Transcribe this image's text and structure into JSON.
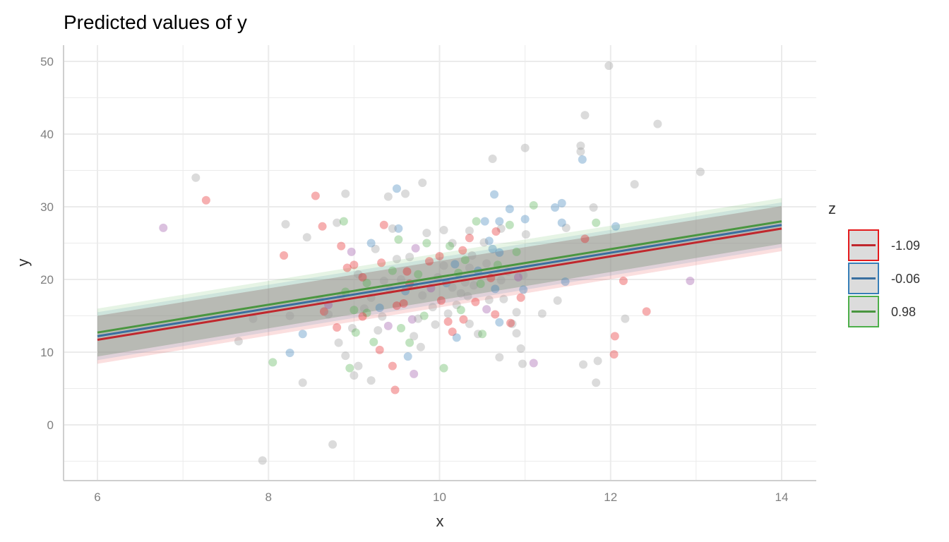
{
  "chart_data": {
    "type": "scatter",
    "title": "Predicted values of y",
    "xlabel": "x",
    "ylabel": "y",
    "xlim": [
      5.6,
      14.4
    ],
    "ylim": [
      -7.5,
      52
    ],
    "xticks": [
      6,
      8,
      10,
      12,
      14
    ],
    "yticks": [
      0,
      10,
      20,
      30,
      40,
      50
    ],
    "grid": true,
    "legend": {
      "title": "z",
      "placement": "right"
    },
    "series": [
      {
        "name": "-1.09",
        "color": "#c0272d",
        "fill": "#e41a1c",
        "line": [
          [
            6,
            11.7
          ],
          [
            14,
            27.0
          ]
        ],
        "ci_lower": [
          [
            6,
            8.4
          ],
          [
            14,
            23.9
          ]
        ],
        "ci_upper": [
          [
            6,
            15.0
          ],
          [
            14,
            30.1
          ]
        ]
      },
      {
        "name": "-0.06",
        "color": "#3a6fa0",
        "fill": "#377eb8",
        "line": [
          [
            6,
            12.2
          ],
          [
            14,
            27.5
          ]
        ],
        "ci_lower": [
          [
            6,
            8.9
          ],
          [
            14,
            24.4
          ]
        ],
        "ci_upper": [
          [
            6,
            15.5
          ],
          [
            14,
            30.6
          ]
        ]
      },
      {
        "name": "0.98",
        "color": "#4a9640",
        "fill": "#4daf4a",
        "line": [
          [
            6,
            12.7
          ],
          [
            14,
            28.0
          ]
        ],
        "ci_lower": [
          [
            6,
            9.4
          ],
          [
            14,
            24.9
          ]
        ],
        "ci_upper": [
          [
            6,
            16.0
          ],
          [
            14,
            31.2
          ]
        ]
      }
    ],
    "point_groups": [
      "#e41a1c",
      "#377eb8",
      "#4daf4a",
      "#999999",
      "#984ea3"
    ],
    "points": [
      [
        11.98,
        49.4,
        3
      ],
      [
        11.7,
        42.6,
        3
      ],
      [
        12.55,
        41.4,
        3
      ],
      [
        11.65,
        38.4,
        3
      ],
      [
        11.65,
        37.6,
        3
      ],
      [
        11.0,
        38.1,
        3
      ],
      [
        10.62,
        36.6,
        3
      ],
      [
        13.05,
        34.8,
        3
      ],
      [
        12.28,
        33.1,
        3
      ],
      [
        7.15,
        34.0,
        3
      ],
      [
        9.8,
        33.3,
        3
      ],
      [
        9.5,
        32.5,
        1
      ],
      [
        8.9,
        31.8,
        3
      ],
      [
        9.4,
        31.4,
        3
      ],
      [
        9.6,
        31.8,
        3
      ],
      [
        8.55,
        31.5,
        0
      ],
      [
        7.27,
        30.9,
        0
      ],
      [
        11.8,
        29.9,
        3
      ],
      [
        11.43,
        30.5,
        1
      ],
      [
        11.1,
        30.2,
        2
      ],
      [
        11.35,
        29.9,
        1
      ],
      [
        10.82,
        29.7,
        1
      ],
      [
        6.77,
        27.1,
        4
      ],
      [
        8.2,
        27.6,
        3
      ],
      [
        10.64,
        31.7,
        1
      ],
      [
        11.67,
        36.5,
        1
      ],
      [
        11.83,
        27.8,
        2
      ],
      [
        12.06,
        27.3,
        1
      ],
      [
        11.7,
        25.6,
        0
      ],
      [
        11.48,
        27.1,
        3
      ],
      [
        11.43,
        27.8,
        1
      ],
      [
        8.18,
        23.3,
        0
      ],
      [
        8.45,
        25.8,
        3
      ],
      [
        8.63,
        27.3,
        0
      ],
      [
        8.8,
        27.8,
        3
      ],
      [
        8.88,
        28.0,
        2
      ],
      [
        9.35,
        27.5,
        0
      ],
      [
        9.52,
        27.0,
        1
      ],
      [
        9.45,
        27.0,
        3
      ],
      [
        9.85,
        26.4,
        3
      ],
      [
        10.05,
        26.8,
        3
      ],
      [
        10.35,
        26.7,
        3
      ],
      [
        10.43,
        28.0,
        2
      ],
      [
        10.53,
        28.0,
        1
      ],
      [
        10.7,
        28.0,
        1
      ],
      [
        10.72,
        27.0,
        3
      ],
      [
        10.82,
        27.5,
        2
      ],
      [
        11.0,
        28.3,
        1
      ],
      [
        11.01,
        26.2,
        3
      ],
      [
        10.66,
        26.6,
        0
      ],
      [
        12.15,
        19.8,
        0
      ],
      [
        12.05,
        12.2,
        0
      ],
      [
        12.04,
        9.7,
        0
      ],
      [
        12.17,
        14.6,
        3
      ],
      [
        12.42,
        15.6,
        0
      ],
      [
        12.93,
        19.8,
        4
      ],
      [
        11.85,
        8.8,
        3
      ],
      [
        11.83,
        5.8,
        3
      ],
      [
        11.68,
        8.3,
        3
      ],
      [
        11.47,
        19.7,
        1
      ],
      [
        11.38,
        17.1,
        3
      ],
      [
        11.2,
        15.3,
        3
      ],
      [
        11.1,
        8.5,
        4
      ],
      [
        10.97,
        8.4,
        3
      ],
      [
        10.95,
        10.5,
        3
      ],
      [
        10.7,
        9.3,
        3
      ],
      [
        10.05,
        7.8,
        2
      ],
      [
        9.7,
        7.0,
        4
      ],
      [
        9.48,
        4.8,
        0
      ],
      [
        9.2,
        6.1,
        3
      ],
      [
        9.0,
        6.8,
        3
      ],
      [
        9.05,
        8.1,
        3
      ],
      [
        8.95,
        7.8,
        2
      ],
      [
        8.4,
        5.8,
        3
      ],
      [
        8.05,
        8.6,
        2
      ],
      [
        7.65,
        11.5,
        3
      ],
      [
        7.82,
        14.6,
        3
      ],
      [
        7.93,
        -4.9,
        3
      ],
      [
        8.75,
        -2.7,
        3
      ],
      [
        8.25,
        9.9,
        1
      ],
      [
        8.4,
        12.5,
        1
      ],
      [
        8.25,
        15.0,
        3
      ],
      [
        8.82,
        11.3,
        3
      ],
      [
        8.9,
        9.5,
        3
      ],
      [
        8.98,
        13.3,
        3
      ],
      [
        9.02,
        12.7,
        2
      ],
      [
        9.23,
        11.4,
        2
      ],
      [
        9.3,
        10.3,
        0
      ],
      [
        9.45,
        8.1,
        0
      ],
      [
        9.63,
        9.4,
        1
      ],
      [
        9.55,
        13.3,
        2
      ],
      [
        9.65,
        11.3,
        2
      ],
      [
        9.7,
        12.2,
        3
      ],
      [
        9.78,
        10.7,
        3
      ],
      [
        10.45,
        12.5,
        3
      ],
      [
        10.5,
        12.5,
        2
      ],
      [
        10.7,
        14.1,
        1
      ],
      [
        10.15,
        12.8,
        0
      ],
      [
        10.2,
        12.0,
        1
      ],
      [
        10.1,
        14.2,
        0
      ],
      [
        10.9,
        12.6,
        3
      ],
      [
        10.85,
        13.9,
        3
      ],
      [
        10.65,
        15.2,
        0
      ],
      [
        10.9,
        15.5,
        3
      ],
      [
        10.95,
        17.5,
        0
      ],
      [
        10.98,
        18.6,
        1
      ],
      [
        10.98,
        20.6,
        3
      ],
      [
        10.9,
        23.8,
        2
      ],
      [
        10.7,
        23.7,
        1
      ],
      [
        10.62,
        24.2,
        1
      ],
      [
        10.58,
        25.3,
        1
      ],
      [
        10.52,
        25.1,
        3
      ],
      [
        10.75,
        17.3,
        3
      ],
      [
        10.65,
        18.7,
        1
      ],
      [
        10.25,
        18.1,
        3
      ],
      [
        10.4,
        19.2,
        3
      ],
      [
        10.35,
        21.6,
        3
      ],
      [
        10.3,
        22.7,
        2
      ],
      [
        10.27,
        24.0,
        0
      ],
      [
        10.35,
        25.7,
        0
      ],
      [
        10.15,
        25.0,
        3
      ],
      [
        8.6,
        17.2,
        3
      ],
      [
        8.65,
        15.6,
        0
      ],
      [
        8.7,
        15.2,
        3
      ],
      [
        8.8,
        13.4,
        0
      ],
      [
        8.85,
        17.8,
        3
      ],
      [
        8.9,
        18.3,
        2
      ],
      [
        8.92,
        21.6,
        0
      ],
      [
        9.0,
        22.0,
        0
      ],
      [
        8.97,
        23.8,
        4
      ],
      [
        8.85,
        24.6,
        0
      ],
      [
        9.05,
        20.7,
        3
      ],
      [
        9.1,
        20.3,
        0
      ],
      [
        9.15,
        19.5,
        2
      ],
      [
        9.12,
        16.0,
        3
      ],
      [
        9.15,
        15.4,
        2
      ],
      [
        9.2,
        17.5,
        3
      ],
      [
        9.25,
        24.2,
        3
      ],
      [
        9.2,
        25.0,
        1
      ],
      [
        9.32,
        22.3,
        0
      ],
      [
        9.35,
        19.8,
        3
      ],
      [
        9.3,
        16.1,
        1
      ],
      [
        9.33,
        14.9,
        3
      ],
      [
        9.4,
        13.6,
        4
      ],
      [
        9.42,
        18.6,
        3
      ],
      [
        9.45,
        21.2,
        2
      ],
      [
        9.5,
        22.8,
        3
      ],
      [
        9.52,
        25.5,
        2
      ],
      [
        9.55,
        20.0,
        3
      ],
      [
        9.58,
        16.7,
        0
      ],
      [
        9.6,
        18.4,
        1
      ],
      [
        9.62,
        21.1,
        0
      ],
      [
        9.65,
        23.1,
        3
      ],
      [
        9.68,
        14.5,
        4
      ],
      [
        9.7,
        19.2,
        3
      ],
      [
        9.72,
        24.3,
        4
      ],
      [
        9.75,
        20.7,
        2
      ],
      [
        9.8,
        17.8,
        3
      ],
      [
        9.82,
        15.0,
        2
      ],
      [
        9.85,
        25.0,
        2
      ],
      [
        9.88,
        22.5,
        0
      ],
      [
        9.9,
        18.8,
        4
      ],
      [
        9.92,
        16.2,
        3
      ],
      [
        9.95,
        13.8,
        3
      ],
      [
        9.98,
        20.3,
        3
      ],
      [
        10.0,
        23.2,
        0
      ],
      [
        10.02,
        17.1,
        0
      ],
      [
        10.05,
        21.9,
        3
      ],
      [
        10.08,
        19.5,
        1
      ],
      [
        10.1,
        15.3,
        3
      ],
      [
        10.12,
        24.6,
        2
      ],
      [
        10.15,
        18.9,
        3
      ],
      [
        10.18,
        22.1,
        1
      ],
      [
        10.2,
        16.5,
        3
      ],
      [
        10.22,
        20.9,
        2
      ],
      [
        10.28,
        14.5,
        0
      ],
      [
        10.3,
        19.6,
        3
      ],
      [
        10.33,
        17.7,
        3
      ],
      [
        10.38,
        23.3,
        3
      ],
      [
        10.42,
        16.9,
        0
      ],
      [
        10.45,
        21.2,
        1
      ],
      [
        10.48,
        19.4,
        2
      ],
      [
        10.55,
        22.2,
        3
      ],
      [
        10.58,
        17.2,
        3
      ],
      [
        10.6,
        20.2,
        0
      ],
      [
        10.68,
        22.0,
        2
      ],
      [
        10.72,
        19.9,
        3
      ],
      [
        10.8,
        21.1,
        3
      ],
      [
        10.83,
        14.0,
        0
      ],
      [
        10.92,
        20.3,
        4
      ],
      [
        9.1,
        14.9,
        0
      ],
      [
        9.28,
        13.0,
        3
      ],
      [
        9.5,
        16.4,
        0
      ],
      [
        9.75,
        14.6,
        3
      ],
      [
        10.35,
        13.9,
        3
      ],
      [
        10.55,
        15.9,
        4
      ],
      [
        9.0,
        15.8,
        2
      ],
      [
        8.7,
        16.5,
        4
      ],
      [
        10.25,
        15.8,
        2
      ],
      [
        9.65,
        19.4,
        0
      ]
    ]
  }
}
